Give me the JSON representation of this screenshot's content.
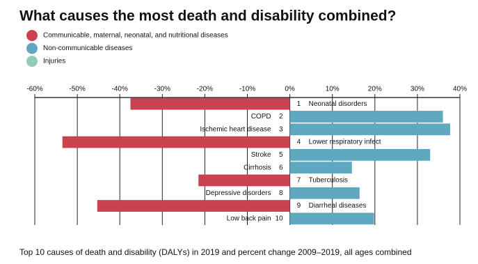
{
  "chart_data": {
    "type": "diverging-bar",
    "title": "What causes the most death and disability combined?",
    "caption": "Top 10 causes of death and disability (DALYs) in 2019 and percent change 2009–2019, all ages combined",
    "categories": [
      "Neonatal disorders",
      "COPD",
      "Ischemic heart disease",
      "Lower respiratory infect",
      "Stroke",
      "Cirrhosis",
      "Tuberculosis",
      "Depressive disorders",
      "Diarrheal diseases",
      "Low back pain"
    ],
    "ranks": [
      1,
      2,
      3,
      4,
      5,
      6,
      7,
      8,
      9,
      10
    ],
    "series": [
      {
        "name": "Communicable, maternal, neonatal, and nutritional diseases",
        "color": "#c8434f",
        "values": [
          -37.5,
          null,
          null,
          -53.5,
          null,
          null,
          -21.5,
          null,
          -45.3,
          null
        ]
      },
      {
        "name": "Non-communicable diseases",
        "color": "#5fa8bf",
        "values": [
          null,
          36,
          37.7,
          null,
          33,
          14.6,
          null,
          16.4,
          null,
          19.8
        ]
      },
      {
        "name": "Injuries",
        "color": "#93cbb3",
        "values": [
          null,
          null,
          null,
          null,
          null,
          null,
          null,
          null,
          null,
          null
        ]
      }
    ],
    "xlim": [
      -60,
      40
    ],
    "xticks": [
      {
        "value": -60,
        "label": "-60%"
      },
      {
        "value": -50,
        "label": "-50%"
      },
      {
        "value": -40,
        "label": "-40%"
      },
      {
        "value": -30,
        "label": "-30%"
      },
      {
        "value": -20,
        "label": "-20%"
      },
      {
        "value": -10,
        "label": "-10%"
      },
      {
        "value": 0,
        "label": "0%"
      },
      {
        "value": 10,
        "label": "10%"
      },
      {
        "value": 20,
        "label": "20%"
      },
      {
        "value": 30,
        "label": "30%"
      },
      {
        "value": 40,
        "label": "40%"
      }
    ],
    "grid": true
  }
}
